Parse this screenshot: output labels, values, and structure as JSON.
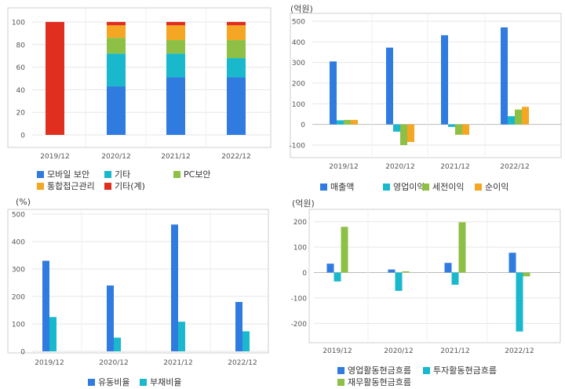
{
  "chart_data": [
    {
      "id": "sales-composition",
      "type": "bar",
      "stacked": true,
      "title": "",
      "unit_label": "",
      "categories": [
        "2019/12",
        "2020/12",
        "2021/12",
        "2022/12"
      ],
      "ylim": [
        0,
        100
      ],
      "yticks": [
        0,
        20,
        40,
        60,
        80,
        100
      ],
      "grid": true,
      "legend_position": "bottom",
      "series": [
        {
          "name": "모바일 보안",
          "color": "#2f7be0",
          "values": [
            0,
            43,
            51,
            51
          ]
        },
        {
          "name": "기타",
          "color": "#19b8cc",
          "values": [
            0,
            29,
            21,
            17
          ]
        },
        {
          "name": "PC보안",
          "color": "#8dc045",
          "values": [
            0,
            14,
            12,
            16
          ]
        },
        {
          "name": "통합접근관리",
          "color": "#f5a623",
          "values": [
            0,
            11,
            13,
            13
          ]
        },
        {
          "name": "기타(계)",
          "color": "#e02f1f",
          "values": [
            100,
            3,
            3,
            3
          ]
        }
      ]
    },
    {
      "id": "earnings",
      "type": "bar",
      "title": "",
      "unit_label": "(억원)",
      "categories": [
        "2019/12",
        "2020/12",
        "2021/12",
        "2022/12"
      ],
      "ylim": [
        -100,
        500
      ],
      "yticks": [
        -100,
        0,
        100,
        200,
        300,
        400,
        500
      ],
      "grid": true,
      "legend_position": "bottom",
      "series": [
        {
          "name": "매출액",
          "color": "#2f7be0",
          "values": [
            305,
            372,
            432,
            470
          ]
        },
        {
          "name": "영업이익",
          "color": "#19b8cc",
          "values": [
            20,
            -35,
            -12,
            40
          ]
        },
        {
          "name": "세전이익",
          "color": "#8dc045",
          "values": [
            22,
            -100,
            -50,
            72
          ]
        },
        {
          "name": "순이익",
          "color": "#f5a623",
          "values": [
            22,
            -85,
            -50,
            85
          ]
        }
      ]
    },
    {
      "id": "ratios",
      "type": "bar",
      "title": "",
      "unit_label": "(%)",
      "categories": [
        "2019/12",
        "2020/12",
        "2021/12",
        "2022/12"
      ],
      "ylim": [
        0,
        520
      ],
      "yticks": [
        0,
        100,
        200,
        300,
        400,
        500
      ],
      "grid": true,
      "legend_position": "bottom",
      "series": [
        {
          "name": "유동비율",
          "color": "#2f7be0",
          "values": [
            330,
            240,
            462,
            180
          ]
        },
        {
          "name": "부채비율",
          "color": "#19b8cc",
          "values": [
            125,
            50,
            108,
            73
          ]
        }
      ]
    },
    {
      "id": "cashflow",
      "type": "bar",
      "title": "",
      "unit_label": "(억원)",
      "categories": [
        "2019/12",
        "2020/12",
        "2021/12",
        "2022/12"
      ],
      "ylim": [
        -270,
        230
      ],
      "yticks": [
        -200,
        -100,
        0,
        100,
        200
      ],
      "grid": true,
      "legend_position": "bottom",
      "series": [
        {
          "name": "영업활동현금흐름",
          "color": "#2f7be0",
          "values": [
            35,
            12,
            38,
            78
          ]
        },
        {
          "name": "투자활동현금흐름",
          "color": "#19b8cc",
          "values": [
            -35,
            -72,
            -48,
            -232
          ]
        },
        {
          "name": "재무활동현금흐름",
          "color": "#8dc045",
          "values": [
            180,
            5,
            198,
            -15
          ]
        }
      ]
    }
  ]
}
